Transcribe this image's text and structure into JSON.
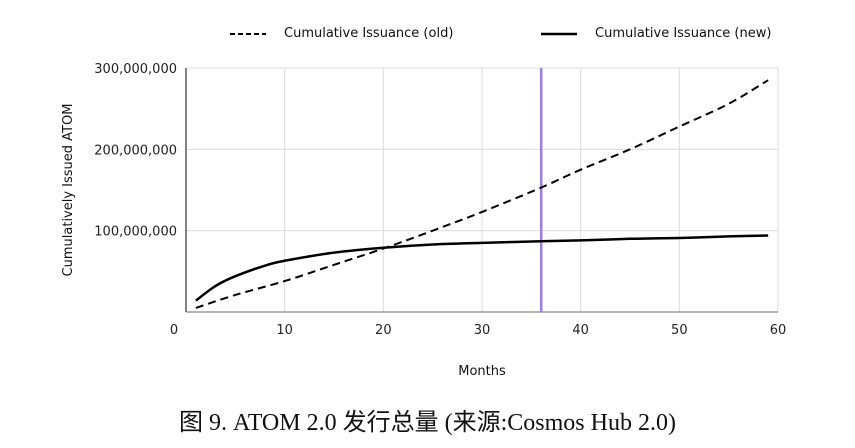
{
  "chart_data": {
    "type": "line",
    "title": "",
    "xlabel": "Months",
    "ylabel": "Cumulatively Issued ATOM",
    "xlim": [
      0,
      60
    ],
    "ylim": [
      0,
      300000000
    ],
    "x_ticks": [
      "0",
      "10",
      "20",
      "30",
      "40",
      "50",
      "60"
    ],
    "y_ticks": [
      "300,000,000",
      "200,000,000",
      "100,000,000"
    ],
    "grid": true,
    "legend_position": "top",
    "series": [
      {
        "name": "Cumulative Issuance (old)",
        "style": "dashed",
        "color": "#000000",
        "x": [
          1,
          5,
          10,
          15,
          20,
          25,
          30,
          36,
          40,
          45,
          50,
          55,
          59
        ],
        "values": [
          5000000,
          21000000,
          38000000,
          58000000,
          78000000,
          100000000,
          123000000,
          153000000,
          175000000,
          200000000,
          228000000,
          256000000,
          285000000
        ]
      },
      {
        "name": "Cumulative Issuance (new)",
        "style": "solid",
        "color": "#000000",
        "x": [
          1,
          3,
          5,
          8,
          10,
          15,
          20,
          25,
          30,
          36,
          40,
          45,
          50,
          55,
          59
        ],
        "values": [
          14000000,
          32000000,
          44000000,
          57000000,
          63000000,
          73000000,
          79000000,
          83000000,
          85000000,
          87000000,
          88000000,
          90000000,
          91000000,
          93000000,
          94000000
        ]
      }
    ],
    "annotations": [
      {
        "type": "vertical_line",
        "x": 36,
        "color": "#9f7aea"
      }
    ]
  },
  "legend": {
    "old_label": "Cumulative Issuance (old)",
    "new_label": "Cumulative Issuance (new)"
  },
  "caption": "图 9. ATOM 2.0  发行总量 (来源:Cosmos Hub 2.0)"
}
